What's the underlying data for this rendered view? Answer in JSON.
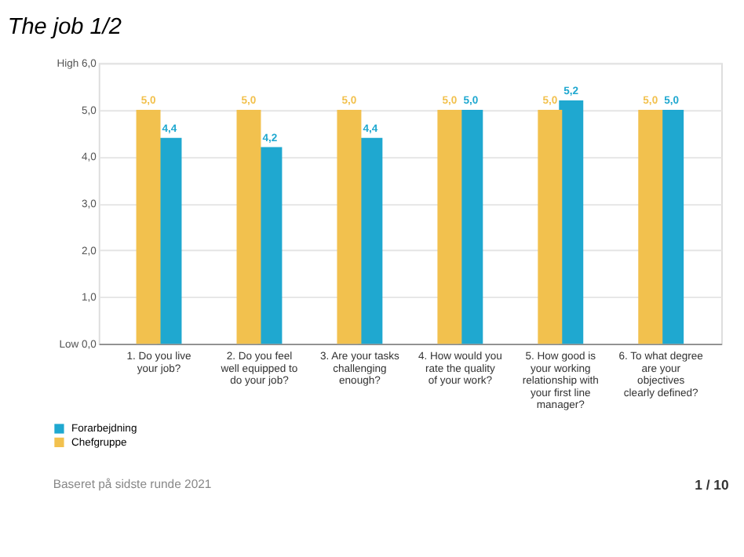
{
  "chart_data": {
    "type": "bar",
    "title": "The job 1/2",
    "categories": [
      "1. Do you live your job?",
      "2. Do you feel well equipped to do your job?",
      "3. Are your tasks challenging enough?",
      "4. How would you rate the quality of your work?",
      "5. How good is your working relationship with your first line manager?",
      "6. To what degree are your objectives clearly defined?"
    ],
    "series": [
      {
        "name": "Forarbejdning",
        "color": "#1fa8d0",
        "values": [
          4.4,
          4.2,
          4.4,
          5.0,
          5.2,
          5.0
        ],
        "value_labels": [
          "4,4",
          "4,2",
          "4,4",
          "5,0",
          "5,2",
          "5,0"
        ]
      },
      {
        "name": "Chefgruppe",
        "color": "#f2c14e",
        "values": [
          5.0,
          5.0,
          5.0,
          5.0,
          5.0,
          5.0
        ],
        "value_labels": [
          "5,0",
          "5,0",
          "5,0",
          "5,0",
          "5,0",
          "5,0"
        ]
      }
    ],
    "ylim": [
      0,
      6
    ],
    "yticks": [
      {
        "value": 0,
        "label": "Low 0,0"
      },
      {
        "value": 1,
        "label": "1,0"
      },
      {
        "value": 2,
        "label": "2,0"
      },
      {
        "value": 3,
        "label": "3,0"
      },
      {
        "value": 4,
        "label": "4,0"
      },
      {
        "value": 5,
        "label": "5,0"
      },
      {
        "value": 6,
        "label": "High 6,0"
      }
    ],
    "grid": "y",
    "legend": "bottom left",
    "annotations": [
      "Baseret på sidste runde 2021",
      "1 / 10"
    ]
  }
}
